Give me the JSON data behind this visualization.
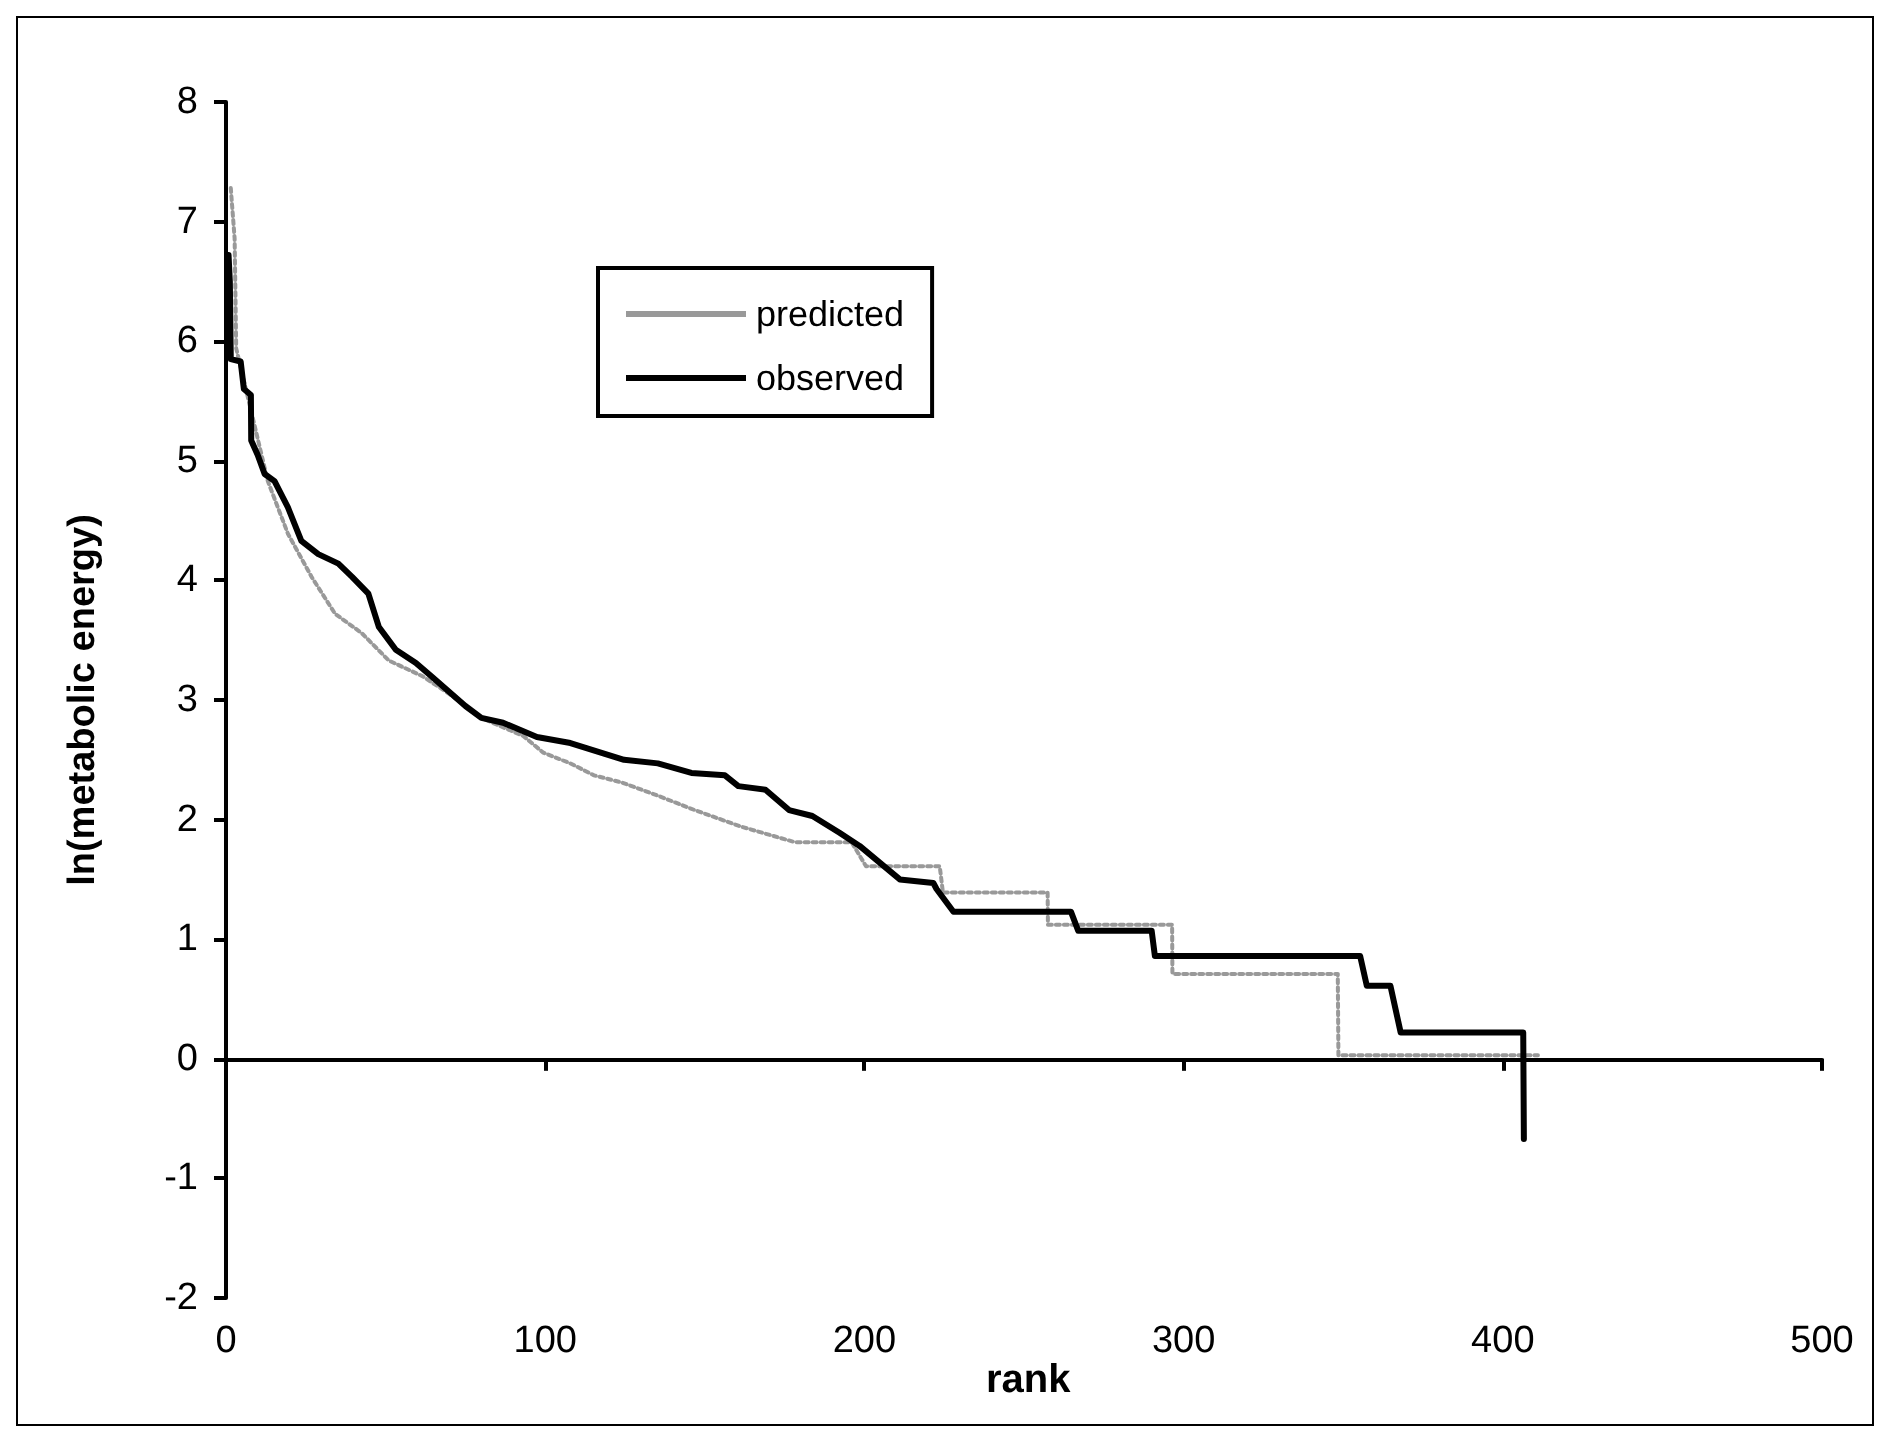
{
  "chart_data": {
    "type": "line",
    "xlabel": "rank",
    "ylabel": "ln(metabolic energy)",
    "xlim": [
      0,
      500
    ],
    "xticks": [
      0,
      100,
      200,
      300,
      400,
      500
    ],
    "ylim": [
      -2,
      8
    ],
    "yticks": [
      -2,
      -1,
      0,
      1,
      2,
      3,
      4,
      5,
      6,
      7,
      8
    ],
    "legend": "top center",
    "marker": "none",
    "series": [
      {
        "name": "predicted",
        "color": "#999999",
        "line_style": "dotted",
        "x": [
          1.5,
          2.7,
          3.2,
          13.1,
          19.4,
          26.8,
          34.2,
          42.5,
          51,
          61.5,
          70,
          80,
          93.1,
          99.4,
          107.9,
          115.3,
          124,
          135.3,
          146.8,
          161.5,
          178.4,
          196,
          200.5,
          223.6,
          224.6,
          257.4,
          257.5,
          296.4,
          296.5,
          348.3,
          348.5,
          411
        ],
        "values": [
          7.28,
          6.86,
          5.94,
          4.83,
          4.39,
          4.03,
          3.72,
          3.56,
          3.33,
          3.2,
          3.05,
          2.85,
          2.7,
          2.56,
          2.47,
          2.37,
          2.31,
          2.2,
          2.08,
          1.94,
          1.81,
          1.81,
          1.61,
          1.61,
          1.39,
          1.39,
          1.12,
          1.12,
          0.71,
          0.71,
          0.03,
          0.03
        ]
      },
      {
        "name": "observed",
        "color": "#000000",
        "line_style": "solid",
        "x": [
          0.8,
          1.2,
          1.5,
          4.6,
          5.6,
          7.8,
          7.9,
          9.9,
          12.1,
          15.2,
          19.4,
          23.6,
          28.9,
          35.2,
          39.5,
          44.6,
          47.9,
          53.2,
          59.5,
          64.7,
          75,
          80,
          86.8,
          97.4,
          107.9,
          124.7,
          135.3,
          145.8,
          156.3,
          160.5,
          169,
          176.4,
          183.7,
          192.2,
          198.5,
          204.8,
          211.1,
          221.6,
          222.6,
          227.9,
          264.7,
          267,
          290,
          291,
          355.3,
          357.4,
          364.8,
          368,
          406.4,
          406.6
        ],
        "values": [
          6.72,
          6.5,
          5.85,
          5.83,
          5.6,
          5.55,
          5.17,
          5.05,
          4.89,
          4.83,
          4.61,
          4.33,
          4.22,
          4.14,
          4.03,
          3.89,
          3.61,
          3.42,
          3.31,
          3.19,
          2.95,
          2.85,
          2.81,
          2.69,
          2.64,
          2.5,
          2.47,
          2.39,
          2.37,
          2.28,
          2.25,
          2.08,
          2.03,
          1.89,
          1.78,
          1.64,
          1.5,
          1.47,
          1.42,
          1.23,
          1.23,
          1.07,
          1.07,
          0.86,
          0.86,
          0.61,
          0.61,
          0.22,
          0.22,
          -0.67
        ]
      }
    ]
  }
}
